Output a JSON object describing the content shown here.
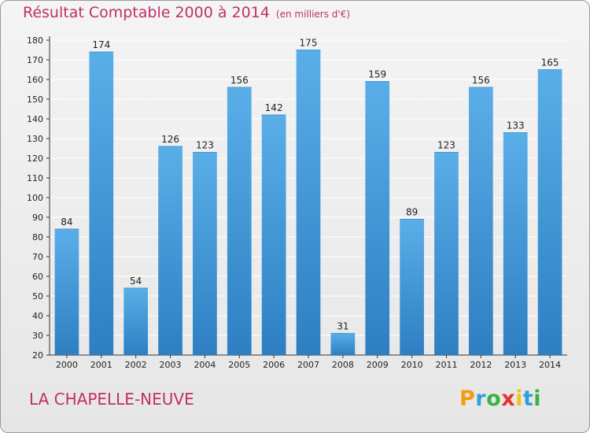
{
  "title": {
    "main": "Résultat Comptable 2000 à 2014",
    "unit": "(en milliers d'€)"
  },
  "commune": "LA CHAPELLE-NEUVE",
  "logo": {
    "letters": [
      "P",
      "r",
      "o",
      "x",
      "i",
      "t",
      "i"
    ],
    "colors": [
      "#f39c12",
      "#2f9fdb",
      "#3cb043",
      "#e6332a",
      "#f0c419",
      "#2f9fdb",
      "#3cb043"
    ]
  },
  "colors": {
    "bar_light": "#5aaee8",
    "bar_dark": "#2d7fc2",
    "grid": "#ffffff",
    "accent": "#c0306a"
  },
  "chart_data": {
    "type": "bar",
    "categories": [
      "2000",
      "2001",
      "2002",
      "2003",
      "2004",
      "2005",
      "2006",
      "2007",
      "2008",
      "2009",
      "2010",
      "2011",
      "2012",
      "2013",
      "2014"
    ],
    "values": [
      84,
      174,
      54,
      126,
      123,
      156,
      142,
      175,
      31,
      159,
      89,
      123,
      156,
      133,
      165
    ],
    "ylim": [
      20,
      180
    ],
    "yticks": [
      20,
      30,
      40,
      50,
      60,
      70,
      80,
      90,
      100,
      110,
      120,
      130,
      140,
      150,
      160,
      170,
      180
    ],
    "grid": true,
    "legend": "none"
  }
}
